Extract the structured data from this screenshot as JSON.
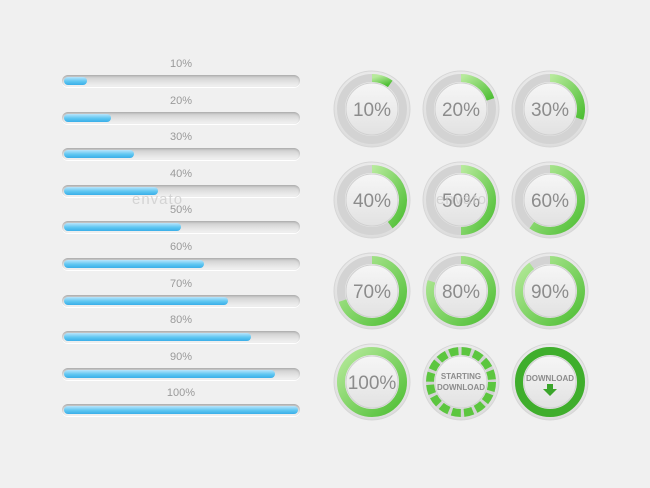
{
  "linear_progress": [
    {
      "label": "10%",
      "value": 0.1
    },
    {
      "label": "20%",
      "value": 0.2
    },
    {
      "label": "30%",
      "value": 0.3
    },
    {
      "label": "40%",
      "value": 0.4
    },
    {
      "label": "50%",
      "value": 0.5
    },
    {
      "label": "60%",
      "value": 0.6
    },
    {
      "label": "70%",
      "value": 0.7
    },
    {
      "label": "80%",
      "value": 0.8
    },
    {
      "label": "90%",
      "value": 0.9
    },
    {
      "label": "100%",
      "value": 1.0
    }
  ],
  "circular_progress": [
    {
      "label": "10%",
      "value": 0.1
    },
    {
      "label": "20%",
      "value": 0.2
    },
    {
      "label": "30%",
      "value": 0.3
    },
    {
      "label": "40%",
      "value": 0.4
    },
    {
      "label": "50%",
      "value": 0.5
    },
    {
      "label": "60%",
      "value": 0.6
    },
    {
      "label": "70%",
      "value": 0.7
    },
    {
      "label": "80%",
      "value": 0.8
    },
    {
      "label": "90%",
      "value": 0.9
    },
    {
      "label": "100%",
      "value": 1.0
    }
  ],
  "starting_download": {
    "line1": "STARTING",
    "line2": "DOWNLOAD"
  },
  "download_button": {
    "label": "DOWNLOAD",
    "icon": "arrow-down-icon"
  },
  "watermarks": [
    "envato",
    "envato",
    "envato"
  ],
  "colors": {
    "blue_fill": "#4fbdf0",
    "green_ring": "#6fcf4a",
    "green_dark": "#3aa52a",
    "dial_text": "#8c8c8c",
    "background": "#f0f0f0"
  }
}
